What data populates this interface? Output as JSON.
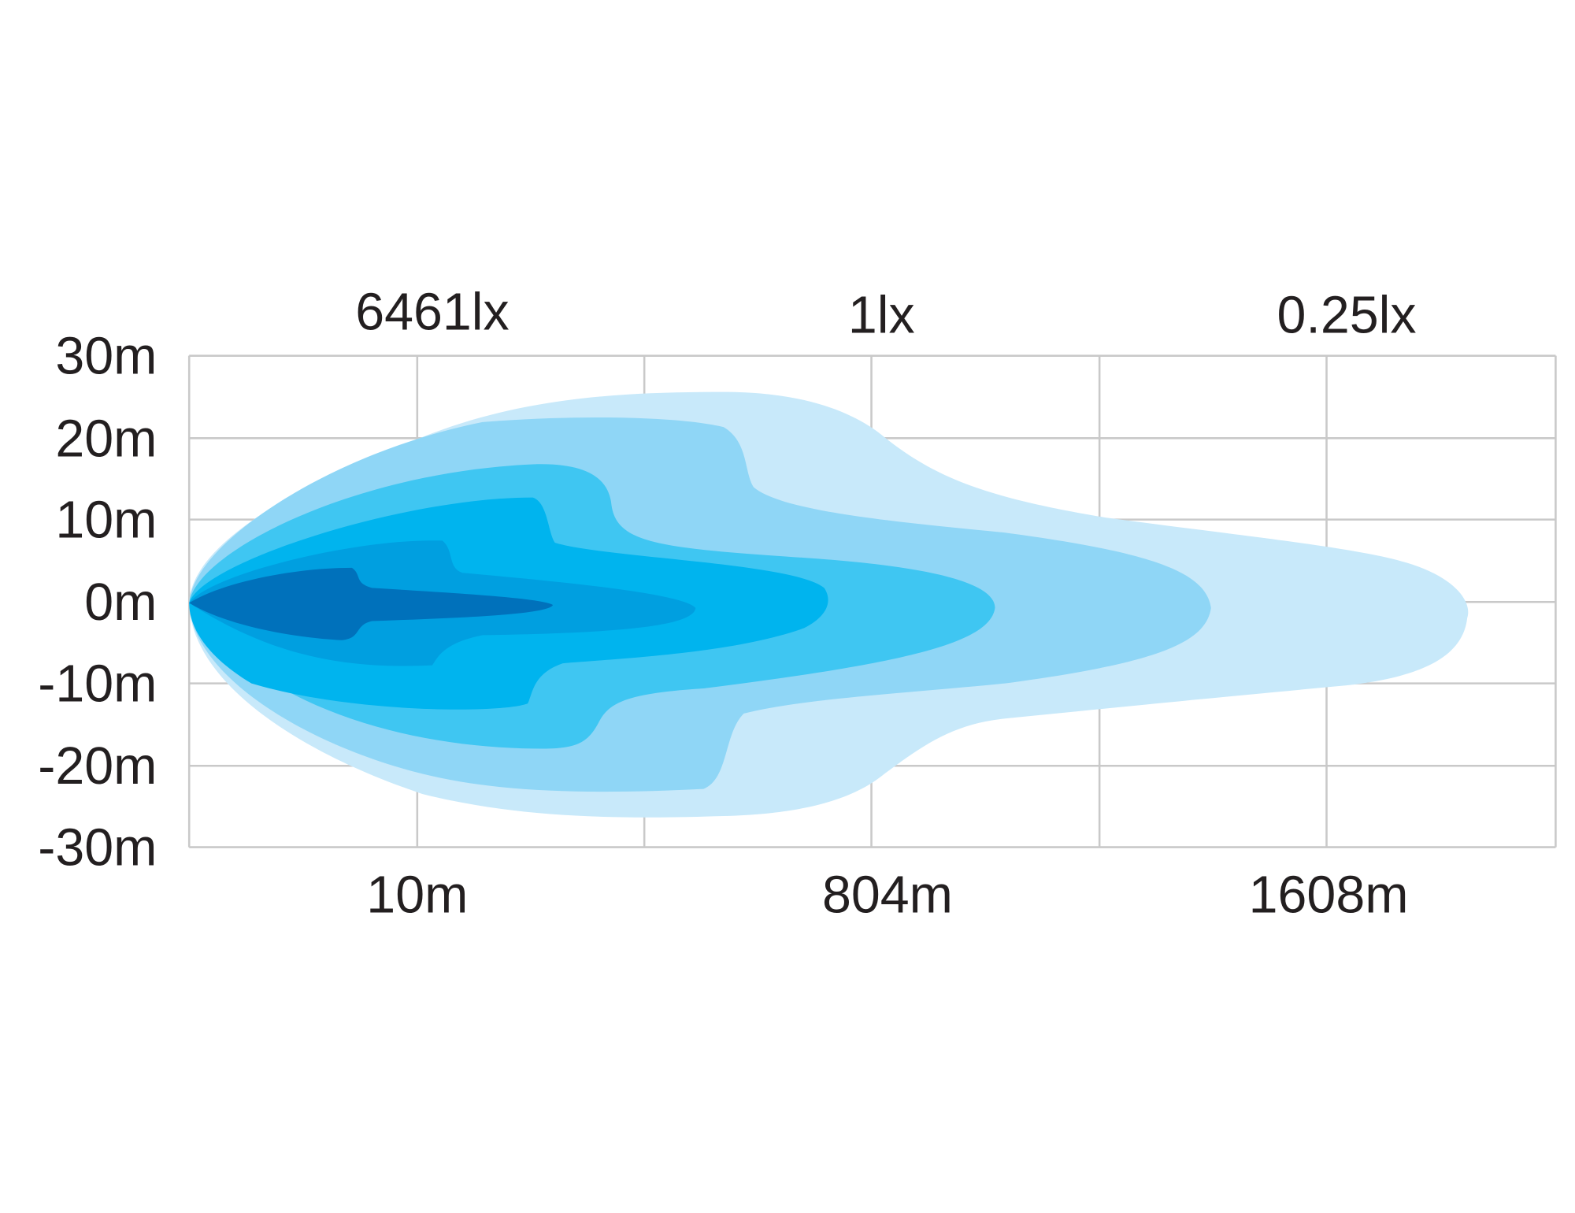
{
  "top_labels": [
    "6461lx",
    "1lx",
    "0.25lx"
  ],
  "y_axis_labels": [
    "30m",
    "20m",
    "10m",
    "0m",
    "-10m",
    "-20m",
    "-30m"
  ],
  "bottom_labels": [
    "10m",
    "804m",
    "1608m"
  ]
}
